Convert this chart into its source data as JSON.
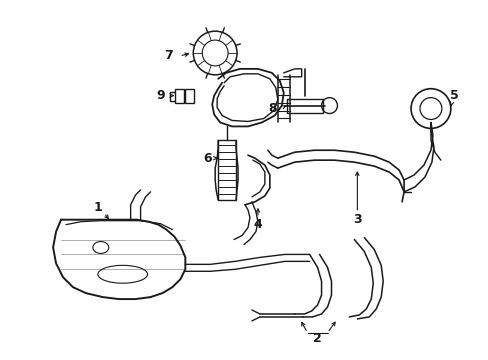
{
  "background_color": "#ffffff",
  "line_color": "#1a1a1a",
  "label_color": "#000000",
  "figsize": [
    4.89,
    3.6
  ],
  "dpi": 100,
  "label_fontsize": 9
}
